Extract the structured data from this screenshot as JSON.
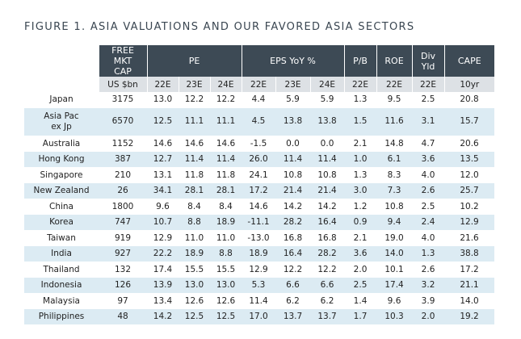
{
  "title": "FIGURE 1. ASIA VALUATIONS AND OUR FAVORED ASIA SECTORS",
  "header_groups": {
    "mktcap": "FREE MKT CAP",
    "pe": "PE",
    "eps": "EPS YoY %",
    "pb": "P/B",
    "roe": "ROE",
    "div": "Div Yld",
    "cape": "CAPE"
  },
  "subheaders": [
    "US $bn",
    "22E",
    "23E",
    "24E",
    "22E",
    "23E",
    "24E",
    "22E",
    "22E",
    "22E",
    "10yr"
  ],
  "rows": [
    {
      "country": "Japan",
      "values": [
        "3175",
        "13.0",
        "12.2",
        "12.2",
        "4.4",
        "5.9",
        "5.9",
        "1.3",
        "9.5",
        "2.5",
        "20.8"
      ]
    },
    {
      "country": "Asia Pac ex Jp",
      "values": [
        "6570",
        "12.5",
        "11.1",
        "11.1",
        "4.5",
        "13.8",
        "13.8",
        "1.5",
        "11.6",
        "3.1",
        "15.7"
      ]
    },
    {
      "country": "Australia",
      "values": [
        "1152",
        "14.6",
        "14.6",
        "14.6",
        "-1.5",
        "0.0",
        "0.0",
        "2.1",
        "14.8",
        "4.7",
        "20.6"
      ]
    },
    {
      "country": "Hong Kong",
      "values": [
        "387",
        "12.7",
        "11.4",
        "11.4",
        "26.0",
        "11.4",
        "11.4",
        "1.0",
        "6.1",
        "3.6",
        "13.5"
      ]
    },
    {
      "country": "Singapore",
      "values": [
        "210",
        "13.1",
        "11.8",
        "11.8",
        "24.1",
        "10.8",
        "10.8",
        "1.3",
        "8.3",
        "4.0",
        "12.0"
      ]
    },
    {
      "country": "New Zealand",
      "values": [
        "26",
        "34.1",
        "28.1",
        "28.1",
        "17.2",
        "21.4",
        "21.4",
        "3.0",
        "7.3",
        "2.6",
        "25.7"
      ]
    },
    {
      "country": "China",
      "values": [
        "1800",
        "9.6",
        "8.4",
        "8.4",
        "14.6",
        "14.2",
        "14.2",
        "1.2",
        "10.8",
        "2.5",
        "10.2"
      ]
    },
    {
      "country": "Korea",
      "values": [
        "747",
        "10.7",
        "8.8",
        "18.9",
        "-11.1",
        "28.2",
        "16.4",
        "0.9",
        "9.4",
        "2.4",
        "12.9"
      ]
    },
    {
      "country": "Taiwan",
      "values": [
        "919",
        "12.9",
        "11.0",
        "11.0",
        "-13.0",
        "16.8",
        "16.8",
        "2.1",
        "19.0",
        "4.0",
        "21.6"
      ]
    },
    {
      "country": "India",
      "values": [
        "927",
        "22.2",
        "18.9",
        "8.8",
        "18.9",
        "16.4",
        "28.2",
        "3.6",
        "14.0",
        "1.3",
        "38.8"
      ]
    },
    {
      "country": "Thailand",
      "values": [
        "132",
        "17.4",
        "15.5",
        "15.5",
        "12.9",
        "12.2",
        "12.2",
        "2.0",
        "10.1",
        "2.6",
        "17.2"
      ]
    },
    {
      "country": "Indonesia",
      "values": [
        "126",
        "13.9",
        "13.0",
        "13.0",
        "5.3",
        "6.6",
        "6.6",
        "2.5",
        "17.4",
        "3.2",
        "21.1"
      ]
    },
    {
      "country": "Malaysia",
      "values": [
        "97",
        "13.4",
        "12.6",
        "12.6",
        "11.4",
        "6.2",
        "6.2",
        "1.4",
        "9.6",
        "3.9",
        "14.0"
      ]
    },
    {
      "country": "Philippines",
      "values": [
        "48",
        "14.2",
        "12.5",
        "12.5",
        "17.0",
        "13.7",
        "13.7",
        "1.7",
        "10.3",
        "2.0",
        "19.2"
      ]
    }
  ],
  "colors": {
    "header_bg": "#3d4a55",
    "subheader_bg": "#dde1e5",
    "stripe_bg": "#dcebf3",
    "title": "#3a4651"
  }
}
